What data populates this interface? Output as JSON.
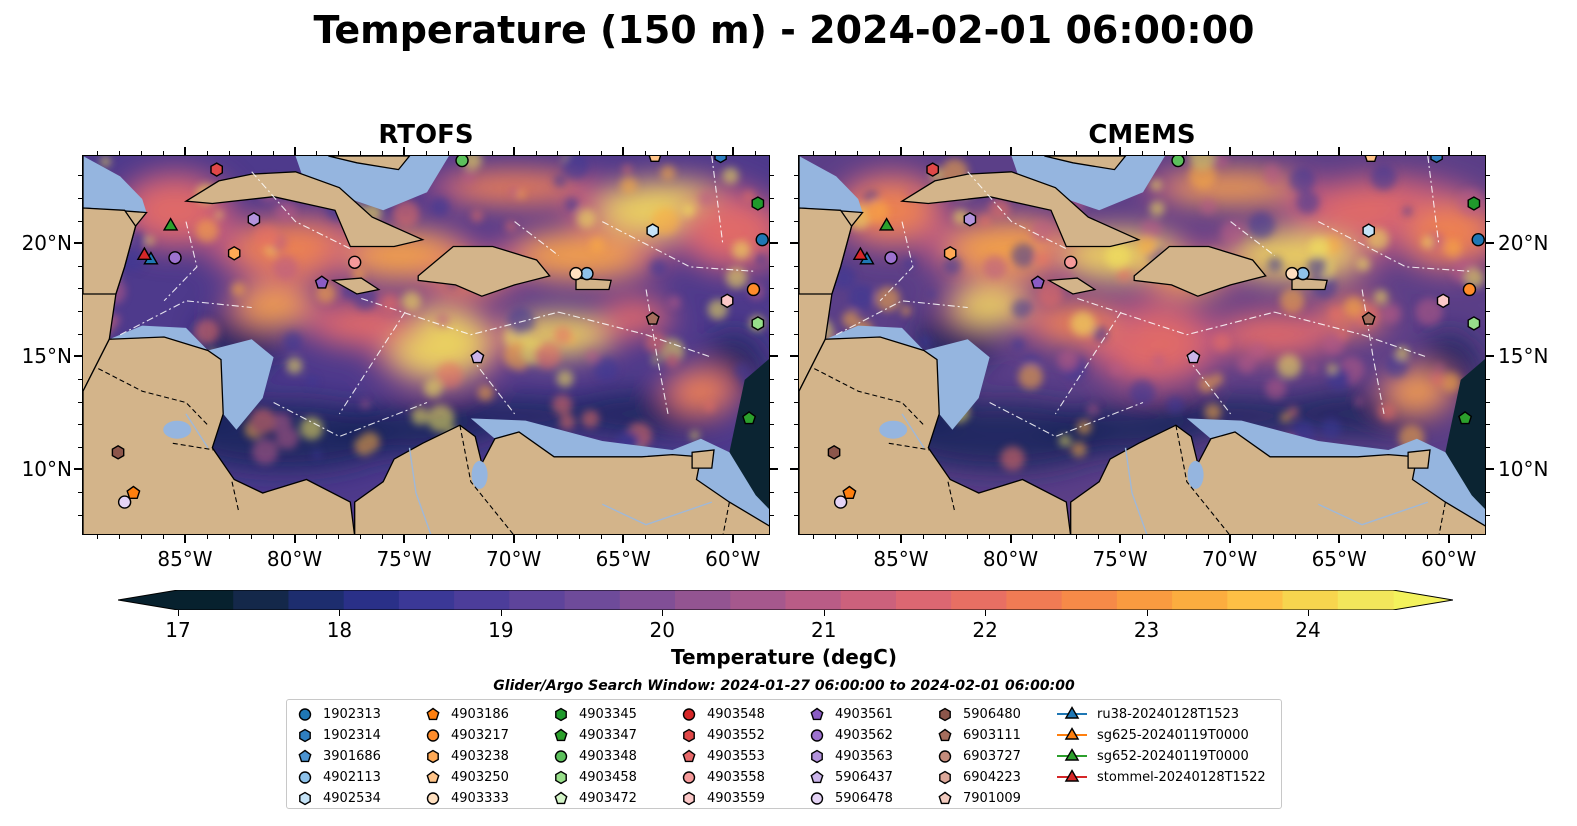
{
  "title": "Temperature (150 m) - 2024-02-01 06:00:00",
  "panels": [
    {
      "title": "RTOFS",
      "bg": "#4e3a8c"
    },
    {
      "title": "CMEMS",
      "bg": "#5b3f88"
    }
  ],
  "axes": {
    "lon_ticks": [
      "85°W",
      "80°W",
      "75°W",
      "70°W",
      "65°W",
      "60°W"
    ],
    "lat_ticks": [
      "20°N",
      "15°N",
      "10°N"
    ]
  },
  "colorbar": {
    "label": "Temperature (degC)",
    "ticks": [
      "17",
      "18",
      "19",
      "20",
      "21",
      "22",
      "23",
      "24"
    ],
    "colors": [
      "#07212e",
      "#14284a",
      "#1d2d6e",
      "#2a3088",
      "#3b3896",
      "#4c3d9a",
      "#5e449b",
      "#6e4b9a",
      "#814f96",
      "#935491",
      "#a6588d",
      "#b95c86",
      "#cc617c",
      "#dc6772",
      "#e86f63",
      "#f07b54",
      "#f68a48",
      "#fa9b40",
      "#fcad3f",
      "#fdc045",
      "#f7d54e",
      "#f3e65b"
    ],
    "min_color": "#07212e",
    "max_color": "#f3f25c"
  },
  "search_window": "Glider/Argo Search Window: 2024-01-27 06:00:00 to 2024-02-01 06:00:00",
  "legend": [
    {
      "label": "1902313",
      "marker": "circle",
      "color": "#1f77b4"
    },
    {
      "label": "1902314",
      "marker": "hexagon",
      "color": "#2f7fc0"
    },
    {
      "label": "3901686",
      "marker": "pentagon",
      "color": "#4b93d1"
    },
    {
      "label": "4902113",
      "marker": "circle",
      "color": "#8ec2ea"
    },
    {
      "label": "4902534",
      "marker": "hexagon",
      "color": "#c5e3f7"
    },
    {
      "label": "4903186",
      "marker": "pentagon",
      "color": "#ff7f0e"
    },
    {
      "label": "4903217",
      "marker": "circle",
      "color": "#ff8c2a"
    },
    {
      "label": "4903238",
      "marker": "hexagon",
      "color": "#ffa955"
    },
    {
      "label": "4903250",
      "marker": "pentagon",
      "color": "#ffc489"
    },
    {
      "label": "4903333",
      "marker": "circle",
      "color": "#ffe0c0"
    },
    {
      "label": "4903345",
      "marker": "hexagon",
      "color": "#1f9a2c"
    },
    {
      "label": "4903347",
      "marker": "pentagon",
      "color": "#2ca02c"
    },
    {
      "label": "4903348",
      "marker": "circle",
      "color": "#5cc05c"
    },
    {
      "label": "4903458",
      "marker": "hexagon",
      "color": "#98df8a"
    },
    {
      "label": "4903472",
      "marker": "pentagon",
      "color": "#d4f5c8"
    },
    {
      "label": "4903548",
      "marker": "circle",
      "color": "#d62728"
    },
    {
      "label": "4903552",
      "marker": "hexagon",
      "color": "#e04848"
    },
    {
      "label": "4903553",
      "marker": "pentagon",
      "color": "#e8696a"
    },
    {
      "label": "4903558",
      "marker": "circle",
      "color": "#f59a9a"
    },
    {
      "label": "4903559",
      "marker": "hexagon",
      "color": "#fcc8c8"
    },
    {
      "label": "4903561",
      "marker": "pentagon",
      "color": "#8b5cc4"
    },
    {
      "label": "4903562",
      "marker": "circle",
      "color": "#9d72cf"
    },
    {
      "label": "4903563",
      "marker": "hexagon",
      "color": "#b393dc"
    },
    {
      "label": "5906437",
      "marker": "pentagon",
      "color": "#cbb5ea"
    },
    {
      "label": "5906478",
      "marker": "circle",
      "color": "#e4d3f5"
    },
    {
      "label": "5906480",
      "marker": "hexagon",
      "color": "#8c564b"
    },
    {
      "label": "6903111",
      "marker": "pentagon",
      "color": "#a56d5d"
    },
    {
      "label": "6903727",
      "marker": "circle",
      "color": "#c48c7c"
    },
    {
      "label": "6904223",
      "marker": "hexagon",
      "color": "#dca89a"
    },
    {
      "label": "7901009",
      "marker": "pentagon",
      "color": "#f2cbbf"
    },
    {
      "label": "ru38-20240128T1523",
      "marker": "triangle-line",
      "color": "#1f77b4"
    },
    {
      "label": "sg625-20240119T0000",
      "marker": "triangle-line",
      "color": "#ff7f0e"
    },
    {
      "label": "sg652-20240119T0000",
      "marker": "triangle-line",
      "color": "#2ca02c"
    },
    {
      "label": "stommel-20240128T1522",
      "marker": "triangle-line",
      "color": "#d62728"
    }
  ],
  "platforms": [
    {
      "id": "1902313",
      "marker": "circle",
      "color": "#1f77b4",
      "lon": -58.7,
      "lat": 20.2
    },
    {
      "id": "1902314",
      "marker": "hexagon",
      "color": "#2f7fc0",
      "lon": -60.6,
      "lat": 23.9
    },
    {
      "id": "4902113",
      "marker": "circle",
      "color": "#8ec2ea",
      "lon": -66.7,
      "lat": 18.7
    },
    {
      "id": "4902534",
      "marker": "hexagon",
      "color": "#c5e3f7",
      "lon": -63.7,
      "lat": 20.6
    },
    {
      "id": "4903186",
      "marker": "pentagon",
      "color": "#ff7f0e",
      "lon": -87.4,
      "lat": 9.0
    },
    {
      "id": "4903217",
      "marker": "circle",
      "color": "#ff8c2a",
      "lon": -59.1,
      "lat": 18.0
    },
    {
      "id": "4903250",
      "marker": "pentagon",
      "color": "#ffc489",
      "lon": -63.6,
      "lat": 23.9
    },
    {
      "id": "4903333",
      "marker": "circle",
      "color": "#ffe0c0",
      "lon": -67.2,
      "lat": 18.7
    },
    {
      "id": "4903345",
      "marker": "hexagon",
      "color": "#1f9a2c",
      "lon": -58.9,
      "lat": 21.8
    },
    {
      "id": "4903348",
      "marker": "circle",
      "color": "#5cc05c",
      "lon": -72.4,
      "lat": 23.7
    },
    {
      "id": "4903458",
      "marker": "hexagon",
      "color": "#98df8a",
      "lon": -58.9,
      "lat": 16.5
    },
    {
      "id": "4903347",
      "marker": "pentagon",
      "color": "#2ca02c",
      "lon": -59.3,
      "lat": 12.3
    },
    {
      "id": "4903552",
      "marker": "hexagon",
      "color": "#e04848",
      "lon": -83.6,
      "lat": 23.3
    },
    {
      "id": "4903558",
      "marker": "circle",
      "color": "#f59a9a",
      "lon": -77.3,
      "lat": 19.2
    },
    {
      "id": "4903559",
      "marker": "hexagon",
      "color": "#fcc8c8",
      "lon": -60.3,
      "lat": 17.5
    },
    {
      "id": "4903561",
      "marker": "pentagon",
      "color": "#8b5cc4",
      "lon": -78.8,
      "lat": 18.3
    },
    {
      "id": "4903562",
      "marker": "circle",
      "color": "#9d72cf",
      "lon": -85.5,
      "lat": 19.4
    },
    {
      "id": "4903563",
      "marker": "hexagon",
      "color": "#b393dc",
      "lon": -81.9,
      "lat": 21.1
    },
    {
      "id": "5906437",
      "marker": "pentagon",
      "color": "#cbb5ea",
      "lon": -71.7,
      "lat": 15.0
    },
    {
      "id": "5906478",
      "marker": "circle",
      "color": "#e4d3f5",
      "lon": -87.8,
      "lat": 8.6
    },
    {
      "id": "5906480",
      "marker": "hexagon",
      "color": "#8c564b",
      "lon": -88.1,
      "lat": 10.8
    },
    {
      "id": "6903111",
      "marker": "pentagon",
      "color": "#a56d5d",
      "lon": -63.7,
      "lat": 16.7
    },
    {
      "id": "4903238",
      "marker": "hexagon",
      "color": "#ffa955",
      "lon": -82.8,
      "lat": 19.6
    }
  ],
  "gliders": [
    {
      "id": "ru38-20240128T1523",
      "color": "#1f77b4",
      "lon": -86.6,
      "lat": 19.3
    },
    {
      "id": "sg652-20240119T0000",
      "color": "#2ca02c",
      "lon": -85.7,
      "lat": 20.8
    },
    {
      "id": "stommel-20240128T1522",
      "color": "#d62728",
      "lon": -86.9,
      "lat": 19.5
    }
  ]
}
